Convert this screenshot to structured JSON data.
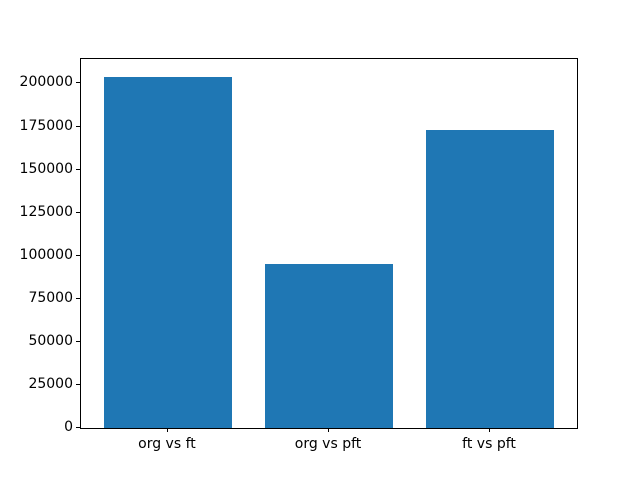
{
  "chart_data": {
    "type": "bar",
    "categories": [
      "org vs ft",
      "org vs pft",
      "ft vs pft"
    ],
    "values": [
      204000,
      95000,
      173000
    ],
    "title": "",
    "xlabel": "",
    "ylabel": "",
    "ylim": [
      0,
      214200
    ],
    "yticks": [
      0,
      25000,
      50000,
      75000,
      100000,
      125000,
      150000,
      175000,
      200000
    ],
    "bar_width_fraction": 0.8,
    "x_margin_fraction": 0.05,
    "grid": false,
    "legend": "none",
    "colors": {
      "bar": "#1f77b4",
      "axis": "#000000",
      "background": "#ffffff",
      "tick_text": "#000000"
    }
  }
}
